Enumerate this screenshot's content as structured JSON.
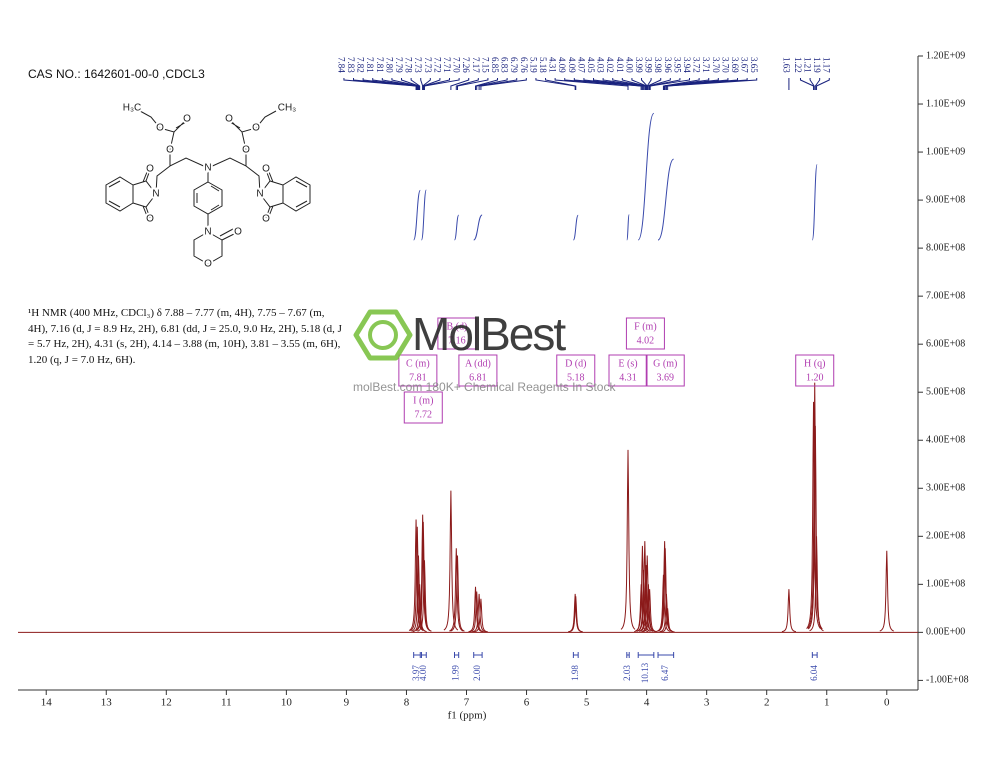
{
  "structure": {
    "atoms": [
      "H₃C",
      "O",
      "O",
      "O",
      "N",
      "O",
      "O",
      "N",
      "CH₃",
      "O",
      "O",
      "O",
      "N",
      "O",
      "O",
      "N",
      "O",
      "O"
    ]
  },
  "watermark": {
    "logo": "MolBest",
    "tagline": "molBest.com 180K+ Chemical Reagents In Stock"
  },
  "chart_data": {
    "type": "nmr",
    "title": "CAS NO.: 1642601-00-0 ,CDCL3",
    "annotation": "¹H NMR (400 MHz, CDCl₃) δ 7.88 – 7.77 (m, 4H), 7.75 – 7.67 (m, 4H), 7.16 (d, J = 8.9 Hz, 2H), 6.81 (dd, J = 25.0, 9.0 Hz, 2H), 5.18 (d, J = 5.7 Hz, 2H), 4.31 (s, 2H), 4.14 – 3.88 (m, 10H), 3.81 – 3.55 (m, 6H), 1.20 (q, J = 7.0 Hz, 6H).",
    "x_label": "f1 (ppm)",
    "xlim": [
      14.47,
      -0.52
    ],
    "xticks": [
      14,
      13,
      12,
      11,
      10,
      9,
      8,
      7,
      6,
      5,
      4,
      3,
      2,
      1,
      0
    ],
    "ylim": [
      -120000000,
      1200000000
    ],
    "yticks": [
      {
        "value": 1200000000,
        "label": "1.20E+09"
      },
      {
        "value": 1100000000,
        "label": "1.10E+09"
      },
      {
        "value": 1000000000,
        "label": "1.00E+09"
      },
      {
        "value": 900000000,
        "label": "9.00E+08"
      },
      {
        "value": 800000000,
        "label": "8.00E+08"
      },
      {
        "value": 700000000,
        "label": "7.00E+08"
      },
      {
        "value": 600000000,
        "label": "6.00E+08"
      },
      {
        "value": 500000000,
        "label": "5.00E+08"
      },
      {
        "value": 400000000,
        "label": "4.00E+08"
      },
      {
        "value": 300000000,
        "label": "3.00E+08"
      },
      {
        "value": 200000000,
        "label": "2.00E+08"
      },
      {
        "value": 100000000,
        "label": "1.00E+08"
      },
      {
        "value": 0,
        "label": "0.00E+00"
      },
      {
        "value": -100000000,
        "label": "-1.00E+08"
      }
    ],
    "color": "#8b1a1a",
    "peaks": {
      "x": [
        7.84,
        7.82,
        7.8,
        7.78,
        7.73,
        7.72,
        7.7,
        7.26,
        7.17,
        7.15,
        6.85,
        6.83,
        6.79,
        6.76,
        5.19,
        5.18,
        4.31,
        4.09,
        4.07,
        4.05,
        4.03,
        4.01,
        3.99,
        3.97,
        3.95,
        3.72,
        3.7,
        3.69,
        3.67,
        3.65,
        1.63,
        1.22,
        1.2,
        1.19,
        1.17,
        0.0
      ],
      "y": [
        235000000,
        220000000,
        160000000,
        100000000,
        245000000,
        230000000,
        150000000,
        295000000,
        175000000,
        160000000,
        95000000,
        85000000,
        80000000,
        70000000,
        80000000,
        75000000,
        380000000,
        100000000,
        180000000,
        130000000,
        190000000,
        140000000,
        160000000,
        100000000,
        90000000,
        120000000,
        190000000,
        175000000,
        80000000,
        50000000,
        90000000,
        480000000,
        520000000,
        430000000,
        200000000,
        170000000
      ]
    },
    "peak_label_color": "#1a237e",
    "peak_labels": [
      7.84,
      7.83,
      7.82,
      7.81,
      7.81,
      {
        "value": 7.8,
        "label": "7.80"
      },
      7.79,
      7.78,
      7.73,
      7.73,
      7.72,
      7.71,
      {
        "value": 7.7,
        "label": "7.70"
      },
      7.26,
      7.17,
      7.15,
      6.85,
      6.83,
      6.79,
      6.76,
      5.19,
      5.18,
      4.31,
      4.09,
      4.09,
      4.07,
      4.05,
      4.03,
      4.02,
      4.01,
      {
        "value": 4,
        "label": "4.00"
      },
      3.99,
      3.99,
      3.98,
      3.96,
      3.95,
      3.94,
      3.72,
      3.71,
      {
        "value": 3.7,
        "label": "3.70"
      },
      {
        "value": 3.7,
        "label": "3.70"
      },
      3.69,
      3.67,
      3.65,
      1.63,
      1.22,
      1.21,
      1.19,
      1.17
    ],
    "integral_color": "#3949ab",
    "integrals": [
      {
        "range": [
          7.88,
          7.77
        ],
        "value": 3.97
      },
      {
        "range": [
          7.75,
          7.67
        ],
        "value": {
          "value": 4,
          "label": "4.00"
        }
      },
      {
        "range": [
          7.2,
          7.13
        ],
        "value": 1.99
      },
      {
        "range": [
          6.88,
          6.74
        ],
        "value": {
          "value": 2,
          "label": "2.00"
        }
      },
      {
        "range": [
          5.22,
          5.14
        ],
        "value": 1.98
      },
      {
        "range": [
          4.33,
          4.29
        ],
        "value": 2.03
      },
      {
        "range": [
          4.14,
          3.88
        ],
        "value": 10.13
      },
      {
        "range": [
          3.81,
          3.55
        ],
        "value": 6.47
      },
      {
        "range": [
          1.24,
          1.16
        ],
        "value": 6.04
      }
    ],
    "multiplet_color": "#b03cb0",
    "multiplets": [
      {
        "name": "C (m)",
        "shift": 7.81
      },
      {
        "name": "B (d)",
        "shift": 7.16
      },
      {
        "name": "A (dd)",
        "shift": 6.81
      },
      {
        "name": "I (m)",
        "shift": 7.72
      },
      {
        "name": "D (d)",
        "shift": 5.18
      },
      {
        "name": "E (s)",
        "shift": 4.31
      },
      {
        "name": "F (m)",
        "shift": 4.02
      },
      {
        "name": "G (m)",
        "shift": 3.69
      },
      {
        "name": "H (q)",
        "shift": {
          "value": 1.2,
          "label": "1.20"
        }
      }
    ]
  }
}
